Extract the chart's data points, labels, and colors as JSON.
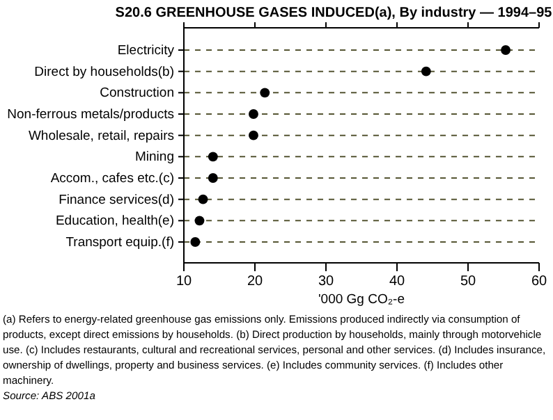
{
  "chart_data": {
    "type": "scatter",
    "orientation": "horizontal",
    "title": "S20.6   GREENHOUSE GASES INDUCED(a), By industry — 1994–95",
    "xlabel": "'000 Gg CO₂-e",
    "categories": [
      "Electricity",
      "Direct by households(b)",
      "Construction",
      "Non-ferrous metals/products",
      "Wholesale, retail, repairs",
      "Mining",
      "Accom., cafes etc.(c)",
      "Finance services(d)",
      "Education, health(e)",
      "Transport equip.(f)"
    ],
    "values": [
      55.3,
      44.1,
      21.4,
      19.8,
      19.8,
      14.1,
      14.1,
      12.7,
      12.2,
      11.6
    ],
    "color": "#000000",
    "marker": "circle",
    "grid": "y",
    "line_style": "dashed",
    "xlim": [
      10,
      60
    ],
    "xticks": [
      10,
      20,
      30,
      40,
      50,
      60
    ],
    "annotations": [
      "(a) Refers to energy-related greenhouse gas emissions only. Emissions produced indirectly via consumption of products, except direct emissions by households. (b) Direct production by households, mainly through motorvehicle use. (c) Includes restaurants, cultural and recreational services, personal and other services. (d) Includes insurance, ownership of dwellings, property and business services. (e) Includes community services. (f) Includes other machinery.",
      "Source: ABS 2001a"
    ]
  }
}
